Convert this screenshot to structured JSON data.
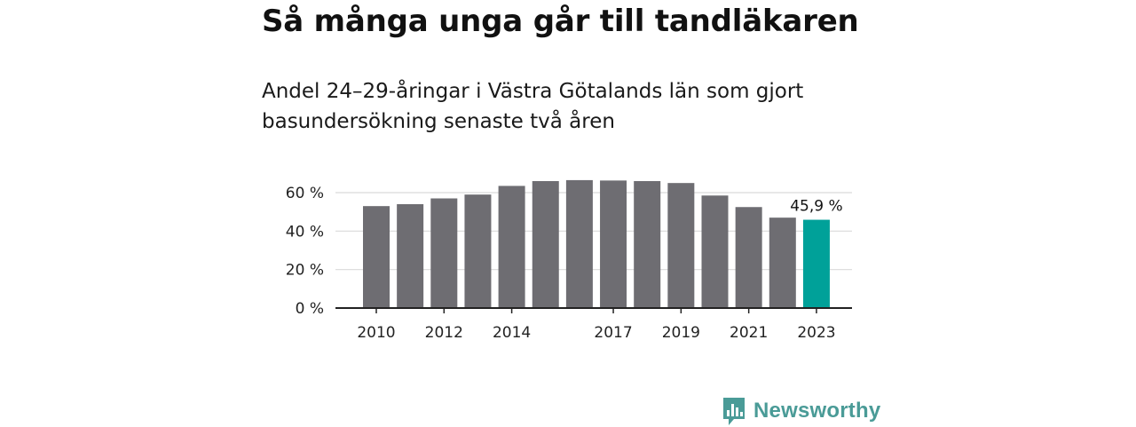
{
  "title": "Så många unga går till tandläkaren",
  "subtitle": "Andel 24–29-åringar i Västra Götalands län som gjort basundersökning senaste två åren",
  "brand": {
    "name": "Newsworthy",
    "icon": "newsworthy-logo-icon",
    "color": "#4a9b97"
  },
  "colors": {
    "bar": "#6e6d72",
    "highlight": "#00a199",
    "grid": "#d9d9d9",
    "axis": "#222222"
  },
  "chart_data": {
    "type": "bar",
    "categories": [
      "2010",
      "2011",
      "2012",
      "2013",
      "2014",
      "2015",
      "2016",
      "2017",
      "2018",
      "2019",
      "2020",
      "2021",
      "2022",
      "2023"
    ],
    "values": [
      53,
      54,
      57,
      59,
      63.5,
      66,
      66.5,
      66.3,
      66,
      65,
      58.5,
      52.5,
      47,
      45.9
    ],
    "x_tick_labels": [
      "2010",
      "2012",
      "2014",
      "2017",
      "2019",
      "2021",
      "2023"
    ],
    "y_ticks": [
      0,
      20,
      40,
      60
    ],
    "y_tick_labels": [
      "0 %",
      "20 %",
      "40 %",
      "60 %"
    ],
    "ylim": [
      0,
      70
    ],
    "grid": true,
    "highlight_index": 13,
    "data_label": "45,9 %"
  }
}
